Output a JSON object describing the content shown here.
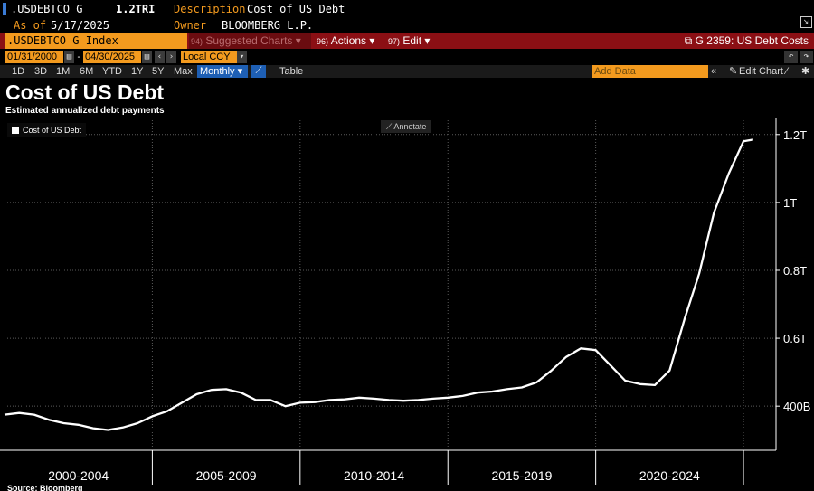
{
  "header": {
    "ticker": ".USDEBTCO G",
    "value": "1.2TRI",
    "description_label": "Description",
    "description": "Cost of US Debt",
    "asof_label": "As of",
    "asof": "5/17/2025",
    "owner_label": "Owner",
    "owner": "BLOOMBERG L.P."
  },
  "cmdbar": {
    "index": ".USDEBTCO G Index",
    "suggested_num": "94)",
    "suggested": "Suggested Charts",
    "actions_num": "96)",
    "actions": "Actions",
    "edit_num": "97)",
    "edit": "Edit",
    "graph_title": "G 2359: US Debt Costs"
  },
  "datebar": {
    "start": "01/31/2000",
    "dash": "-",
    "end": "04/30/2025",
    "currency": "Local CCY"
  },
  "periods": [
    "1D",
    "3D",
    "1M",
    "6M",
    "YTD",
    "1Y",
    "5Y",
    "Max"
  ],
  "toolbar": {
    "frequency": "Monthly",
    "table": "Table",
    "add_data_placeholder": "Add Data",
    "edit_chart": "Edit Chart"
  },
  "chart_title": "Cost of US Debt",
  "chart_subtitle": "Estimated annualized debt payments",
  "legend_label": "Cost of US Debt",
  "annotate_label": "Annotate",
  "source": "Source: Bloomberg",
  "colors": {
    "orange": "#f39a1e",
    "red_bar": "#8b0f14",
    "blue": "#1e5fb4",
    "line": "#ffffff"
  },
  "chart_data": {
    "type": "line",
    "title": "Cost of US Debt",
    "subtitle": "Estimated annualized debt payments",
    "x_labels": [
      "2000-2004",
      "2005-2009",
      "2010-2014",
      "2015-2019",
      "2020-2024"
    ],
    "y_ticks": [
      {
        "value": 400,
        "label": "400B"
      },
      {
        "value": 600,
        "label": "0.6T"
      },
      {
        "value": 800,
        "label": "0.8T"
      },
      {
        "value": 1000,
        "label": "1T"
      },
      {
        "value": 1200,
        "label": "1.2T"
      }
    ],
    "ylim": [
      270,
      1250
    ],
    "xlim": [
      2000.0,
      2026.1
    ],
    "grid": true,
    "series": [
      {
        "name": "Cost of US Debt",
        "x": [
          2000.0,
          2000.5,
          2001.0,
          2001.5,
          2002.0,
          2002.5,
          2003.0,
          2003.5,
          2004.0,
          2004.5,
          2005.0,
          2005.5,
          2006.0,
          2006.5,
          2007.0,
          2007.5,
          2008.0,
          2008.5,
          2009.0,
          2009.5,
          2010.0,
          2010.5,
          2011.0,
          2011.5,
          2012.0,
          2012.5,
          2013.0,
          2013.5,
          2014.0,
          2014.5,
          2015.0,
          2015.5,
          2016.0,
          2016.5,
          2017.0,
          2017.5,
          2018.0,
          2018.5,
          2019.0,
          2019.5,
          2020.0,
          2020.5,
          2021.0,
          2021.5,
          2022.0,
          2022.5,
          2023.0,
          2023.5,
          2024.0,
          2024.5,
          2025.0,
          2025.33
        ],
        "y": [
          375,
          380,
          375,
          360,
          350,
          345,
          335,
          330,
          337,
          350,
          370,
          385,
          410,
          435,
          448,
          450,
          440,
          418,
          418,
          400,
          410,
          412,
          418,
          420,
          425,
          422,
          418,
          416,
          418,
          422,
          425,
          430,
          440,
          443,
          450,
          455,
          470,
          505,
          545,
          570,
          565,
          520,
          475,
          465,
          462,
          505,
          655,
          790,
          970,
          1085,
          1180,
          1185
        ]
      }
    ]
  }
}
